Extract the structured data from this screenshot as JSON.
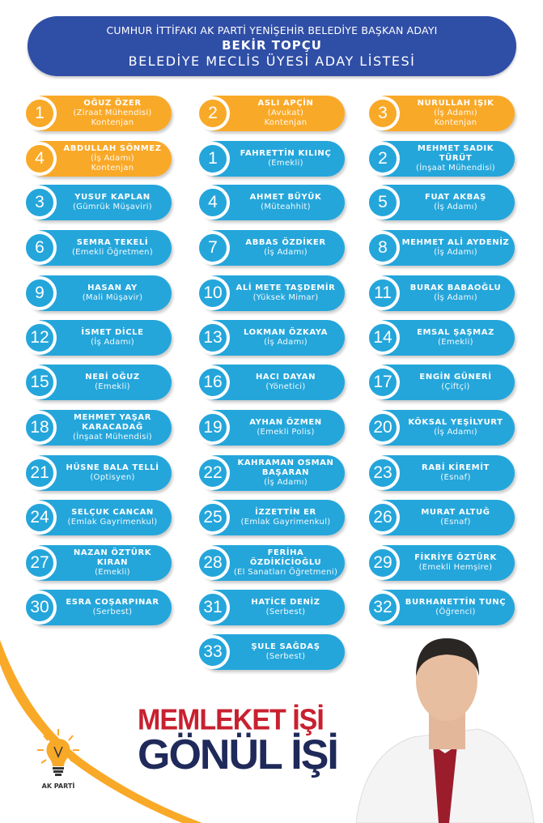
{
  "header": {
    "line1": "CUMHUR  İTTİFAKI AK PARTİ YENİŞEHİR BELEDİYE BAŞKAN ADAYI",
    "line2": "BEKİR TOPÇU",
    "line3": "BELEDİYE MECLİS ÜYESİ ADAY LİSTESİ"
  },
  "colors": {
    "header": "#2f4ea6",
    "blue": "#24a6db",
    "orange": "#f9a928",
    "slogan_red": "#c8202f",
    "slogan_navy": "#1f2a5a"
  },
  "candidates": [
    {
      "num": "1",
      "name": "OĞUZ ÖZER",
      "job": "(Ziraat Mühendisi)",
      "quota": "Kontenjan",
      "color": "orange"
    },
    {
      "num": "2",
      "name": "ASLI APÇİN",
      "job": "(Avukat)",
      "quota": "Kontenjan",
      "color": "orange"
    },
    {
      "num": "3",
      "name": "NURULLAH IŞIK",
      "job": "(İş Adamı)",
      "quota": "Kontenjan",
      "color": "orange"
    },
    {
      "num": "4",
      "name": "ABDULLAH SÖNMEZ",
      "job": "(İş Adamı)",
      "quota": "Kontenjan",
      "color": "orange"
    },
    {
      "num": "1",
      "name": "FAHRETTİN KILINÇ",
      "job": "(Emekli)",
      "color": "blue"
    },
    {
      "num": "2",
      "name": "MEHMET SADIK TÜRÜT",
      "job": "(İnşaat Mühendisi)",
      "color": "blue"
    },
    {
      "num": "3",
      "name": "YUSUF KAPLAN",
      "job": "(Gümrük Müşaviri)",
      "color": "blue"
    },
    {
      "num": "4",
      "name": "AHMET BÜYÜK",
      "job": "(Müteahhit)",
      "color": "blue"
    },
    {
      "num": "5",
      "name": "FUAT AKBAŞ",
      "job": "(İş Adamı)",
      "color": "blue"
    },
    {
      "num": "6",
      "name": "SEMRA TEKELİ",
      "job": "(Emekli Öğretmen)",
      "color": "blue"
    },
    {
      "num": "7",
      "name": "ABBAS ÖZDİKER",
      "job": "(İş Adamı)",
      "color": "blue"
    },
    {
      "num": "8",
      "name": "MEHMET ALİ AYDENİZ",
      "job": "(İş Adamı)",
      "color": "blue"
    },
    {
      "num": "9",
      "name": "HASAN AY",
      "job": "(Mali Müşavir)",
      "color": "blue"
    },
    {
      "num": "10",
      "name": "ALİ METE TAŞDEMİR",
      "job": "(Yüksek Mimar)",
      "color": "blue"
    },
    {
      "num": "11",
      "name": "BURAK BABAOĞLU",
      "job": "(İş Adamı)",
      "color": "blue"
    },
    {
      "num": "12",
      "name": "İSMET DİCLE",
      "job": "(İş Adamı)",
      "color": "blue"
    },
    {
      "num": "13",
      "name": "LOKMAN ÖZKAYA",
      "job": "(İş Adamı)",
      "color": "blue"
    },
    {
      "num": "14",
      "name": "EMSAL ŞAŞMAZ",
      "job": "(Emekli)",
      "color": "blue"
    },
    {
      "num": "15",
      "name": "NEBİ OĞUZ",
      "job": "(Emekli)",
      "color": "blue"
    },
    {
      "num": "16",
      "name": "HACI DAYAN",
      "job": "(Yönetici)",
      "color": "blue"
    },
    {
      "num": "17",
      "name": "ENGİN GÜNERİ",
      "job": "(Çiftçi)",
      "color": "blue"
    },
    {
      "num": "18",
      "name": "MEHMET YAŞAR KARACADAĞ",
      "job": "(İnşaat Mühendisi)",
      "color": "blue"
    },
    {
      "num": "19",
      "name": "AYHAN ÖZMEN",
      "job": "(Emekli Polis)",
      "color": "blue"
    },
    {
      "num": "20",
      "name": "KÖKSAL YEŞİLYURT",
      "job": "(İş Adamı)",
      "color": "blue"
    },
    {
      "num": "21",
      "name": "HÜSNE BALA TELLİ",
      "job": "(Optisyen)",
      "color": "blue"
    },
    {
      "num": "22",
      "name": "KAHRAMAN OSMAN BAŞARAN",
      "job": "(İş Adamı)",
      "color": "blue"
    },
    {
      "num": "23",
      "name": "RABİ KİREMİT",
      "job": "(Esnaf)",
      "color": "blue"
    },
    {
      "num": "24",
      "name": "SELÇUK CANCAN",
      "job": "(Emlak Gayrimenkul)",
      "color": "blue"
    },
    {
      "num": "25",
      "name": "İZZETTİN ER",
      "job": "(Emlak Gayrimenkul)",
      "color": "blue"
    },
    {
      "num": "26",
      "name": "MURAT ALTUĞ",
      "job": "(Esnaf)",
      "color": "blue"
    },
    {
      "num": "27",
      "name": "NAZAN ÖZTÜRK KIRAN",
      "job": "(Emekli)",
      "color": "blue"
    },
    {
      "num": "28",
      "name": "FERİHA ÖZDİKİCİOĞLU",
      "job": "(El Sanatları Öğretmeni)",
      "color": "blue"
    },
    {
      "num": "29",
      "name": "FİKRİYE ÖZTÜRK",
      "job": "(Emekli Hemşire)",
      "color": "blue"
    },
    {
      "num": "30",
      "name": "ESRA COŞARPINAR",
      "job": "(Serbest)",
      "color": "blue"
    },
    {
      "num": "31",
      "name": "HATİCE DENİZ",
      "job": "(Serbest)",
      "color": "blue"
    },
    {
      "num": "32",
      "name": "BURHANETTİN TUNÇ",
      "job": "(Öğrenci)",
      "color": "blue"
    },
    {
      "num": "33",
      "name": "ŞULE SAĞDAŞ",
      "job": "(Serbest)",
      "color": "blue"
    }
  ],
  "logo": {
    "text": "AK PARTİ",
    "icon": "lightbulb-icon"
  },
  "slogan": {
    "line1": "MEMLEKET İŞİ",
    "line2": "GÖNÜL İŞİ"
  }
}
